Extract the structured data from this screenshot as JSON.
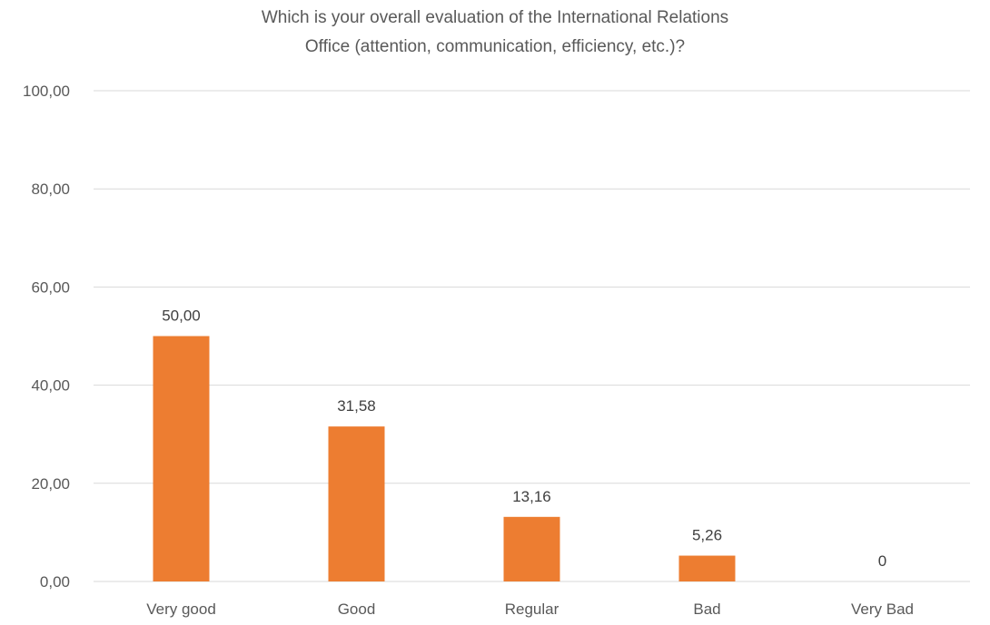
{
  "chart_data": {
    "type": "bar",
    "title_lines": [
      "Which is your overall evaluation of the International Relations",
      "Office (attention, communication, efficiency, etc.)?"
    ],
    "categories": [
      "Very good",
      "Good",
      "Regular",
      "Bad",
      "Very Bad"
    ],
    "values": [
      50.0,
      31.58,
      13.16,
      5.26,
      0
    ],
    "data_labels": [
      "50,00",
      "31,58",
      "13,16",
      "5,26",
      "0"
    ],
    "ylim": [
      0,
      100
    ],
    "y_ticks": [
      0,
      20,
      40,
      60,
      80,
      100
    ],
    "y_tick_labels": [
      "0,00",
      "20,00",
      "40,00",
      "60,00",
      "80,00",
      "100,00"
    ],
    "xlabel": "",
    "ylabel": "",
    "grid": true,
    "legend": "none",
    "colors": {
      "bar": "#ED7D31",
      "grid": "#D9D9D9",
      "text": "#595959"
    }
  }
}
